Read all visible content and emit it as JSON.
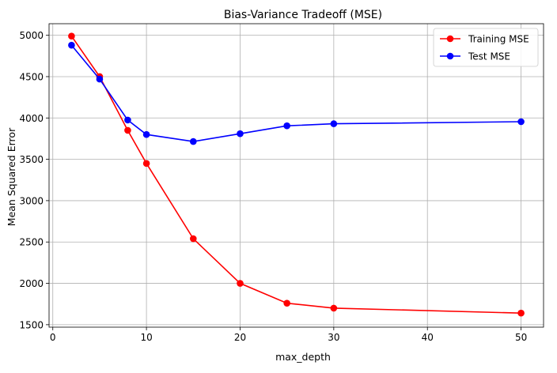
{
  "chart_data": {
    "type": "line",
    "title": "Bias-Variance Tradeoff (MSE)",
    "xlabel": "max_depth",
    "ylabel": "Mean Squared Error",
    "xlim": [
      -0.4,
      52.4
    ],
    "ylim": [
      1470,
      5140
    ],
    "xticks": [
      0,
      10,
      20,
      30,
      40,
      50
    ],
    "yticks": [
      1500,
      2000,
      2500,
      3000,
      3500,
      4000,
      4500,
      5000
    ],
    "grid": true,
    "legend_position": "top-right",
    "x": [
      2,
      5,
      8,
      10,
      15,
      20,
      25,
      30,
      50
    ],
    "series": [
      {
        "name": "Training MSE",
        "color": "#ff0000",
        "marker": "circle",
        "values": [
          4990,
          4500,
          3850,
          3450,
          2540,
          2000,
          1760,
          1700,
          1640
        ]
      },
      {
        "name": "Test MSE",
        "color": "#0000ff",
        "marker": "circle",
        "values": [
          4880,
          4470,
          3975,
          3800,
          3715,
          3810,
          3905,
          3930,
          3955
        ]
      }
    ]
  }
}
